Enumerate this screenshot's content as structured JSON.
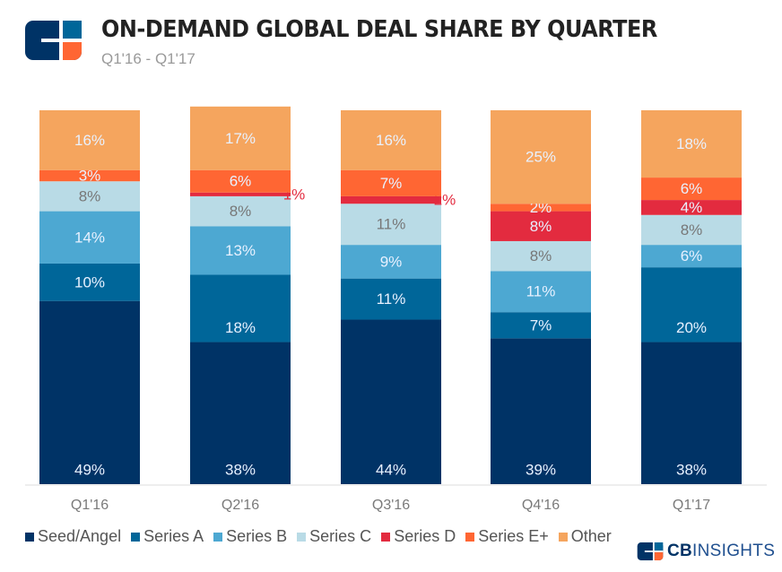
{
  "header": {
    "title": "ON-DEMAND GLOBAL DEAL SHARE BY QUARTER",
    "subtitle": "Q1'16 - Q1'17",
    "logo_icon": "cb-insights-logo-icon"
  },
  "brand": {
    "prefix": "CB",
    "suffix": "INSIGHTS"
  },
  "colors": {
    "Seed/Angel": "#003366",
    "Series A": "#006699",
    "Series B": "#4da8d2",
    "Series C": "#b9dbe6",
    "Series D": "#e32b3f",
    "Series E+": "#ff6633",
    "Other": "#f5a55e"
  },
  "chart_data": {
    "type": "bar",
    "stacked": true,
    "title": "ON-DEMAND GLOBAL DEAL SHARE BY QUARTER",
    "subtitle": "Q1'16 - Q1'17",
    "xlabel": "",
    "ylabel": "",
    "ylim": [
      0,
      100
    ],
    "unit": "%",
    "grid": false,
    "legend_position": "bottom",
    "categories": [
      "Q1'16",
      "Q2'16",
      "Q3'16",
      "Q4'16",
      "Q1'17"
    ],
    "series": [
      {
        "name": "Seed/Angel",
        "values": [
          49,
          38,
          44,
          39,
          38
        ]
      },
      {
        "name": "Series A",
        "values": [
          10,
          18,
          11,
          7,
          20
        ]
      },
      {
        "name": "Series B",
        "values": [
          14,
          13,
          9,
          11,
          6
        ]
      },
      {
        "name": "Series C",
        "values": [
          8,
          8,
          11,
          8,
          8
        ]
      },
      {
        "name": "Series D",
        "values": [
          0,
          1,
          2,
          8,
          4
        ]
      },
      {
        "name": "Series E+",
        "values": [
          3,
          6,
          7,
          2,
          6
        ]
      },
      {
        "name": "Other",
        "values": [
          16,
          17,
          16,
          25,
          18
        ]
      }
    ]
  },
  "legend": [
    {
      "label": "Seed/Angel"
    },
    {
      "label": "Series A"
    },
    {
      "label": "Series B"
    },
    {
      "label": "Series C"
    },
    {
      "label": "Series D"
    },
    {
      "label": "Series E+"
    },
    {
      "label": "Other"
    }
  ]
}
